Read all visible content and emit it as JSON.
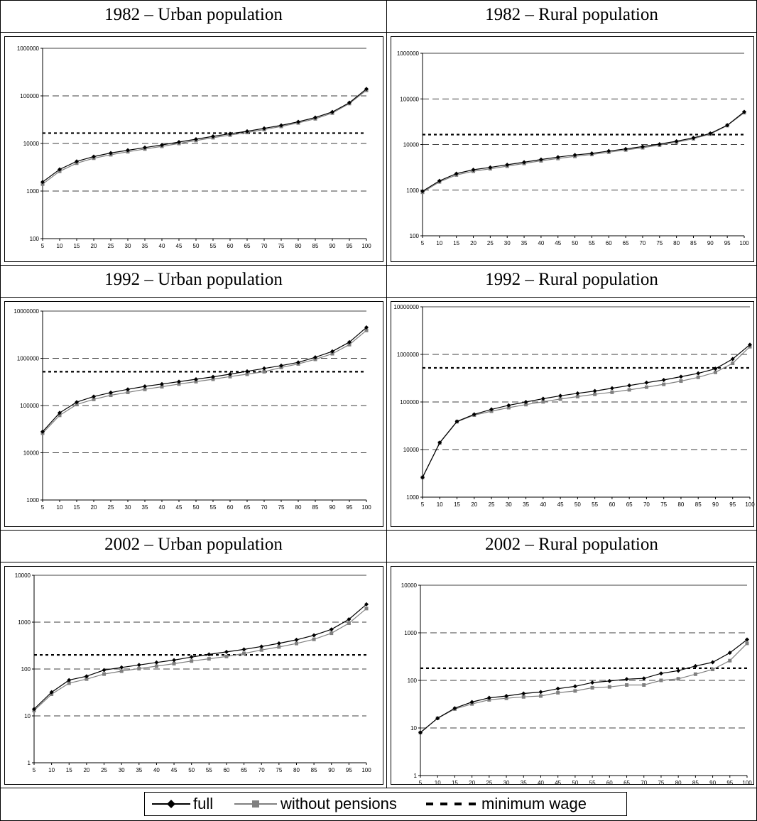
{
  "legend": {
    "full": "full",
    "without_pensions": "without pensions",
    "minimum_wage": "minimum wage"
  },
  "colors": {
    "full": "#000000",
    "without_pensions": "#808080",
    "minimum_wage": "#000000",
    "grid": "#000000"
  },
  "chart_data": [
    {
      "type": "line",
      "title": "1982 – Urban population",
      "scale": "log",
      "ylim": [
        100,
        1000000
      ],
      "yticks": [
        "100",
        "1000",
        "10000",
        "100000",
        "1000000"
      ],
      "x": [
        5,
        10,
        15,
        20,
        25,
        30,
        35,
        40,
        45,
        50,
        55,
        60,
        65,
        70,
        75,
        80,
        85,
        90,
        95,
        100
      ],
      "series": [
        {
          "name": "full",
          "values": [
            1550,
            2850,
            4200,
            5300,
            6300,
            7200,
            8200,
            9300,
            10700,
            12300,
            14100,
            16000,
            18000,
            20800,
            24000,
            28500,
            35000,
            46000,
            72000,
            140000
          ]
        },
        {
          "name": "without pensions",
          "values": [
            1400,
            2600,
            3850,
            4900,
            5800,
            6700,
            7650,
            8700,
            10000,
            11500,
            13200,
            15000,
            17000,
            19600,
            22800,
            27000,
            33000,
            43500,
            69000,
            131000
          ]
        }
      ],
      "minimum_wage": 16500
    },
    {
      "type": "line",
      "title": "1982 – Rural population",
      "scale": "log",
      "ylim": [
        100,
        1000000
      ],
      "yticks": [
        "100",
        "1000",
        "10000",
        "100000",
        "1000000"
      ],
      "x": [
        5,
        10,
        15,
        20,
        25,
        30,
        35,
        40,
        45,
        50,
        55,
        60,
        65,
        70,
        75,
        80,
        85,
        90,
        95,
        100
      ],
      "series": [
        {
          "name": "full",
          "values": [
            950,
            1600,
            2300,
            2800,
            3150,
            3600,
            4100,
            4700,
            5300,
            5900,
            6400,
            7200,
            8000,
            9000,
            10200,
            11800,
            14000,
            17500,
            26500,
            52000
          ]
        },
        {
          "name": "without pensions",
          "values": [
            900,
            1520,
            2150,
            2600,
            2950,
            3350,
            3850,
            4400,
            4950,
            5500,
            6050,
            6800,
            7600,
            8500,
            9700,
            11200,
            13400,
            17000,
            26000,
            50000
          ]
        }
      ],
      "minimum_wage": 16500
    },
    {
      "type": "line",
      "title": "1992 – Urban population",
      "scale": "log",
      "ylim": [
        1000,
        10000000
      ],
      "yticks": [
        "1000",
        "10000",
        "100000",
        "1000000",
        "10000000"
      ],
      "x": [
        5,
        10,
        15,
        20,
        25,
        30,
        35,
        40,
        45,
        50,
        55,
        60,
        65,
        70,
        75,
        80,
        85,
        90,
        95,
        100
      ],
      "series": [
        {
          "name": "full",
          "values": [
            28000,
            70000,
            118000,
            155000,
            188000,
            220000,
            255000,
            285000,
            320000,
            360000,
            405000,
            460000,
            530000,
            610000,
            700000,
            820000,
            1050000,
            1400000,
            2200000,
            4500000
          ]
        },
        {
          "name": "without pensions",
          "values": [
            26000,
            62000,
            105000,
            135000,
            165000,
            190000,
            220000,
            250000,
            285000,
            320000,
            360000,
            410000,
            460000,
            520000,
            640000,
            760000,
            950000,
            1250000,
            1950000,
            3900000
          ]
        }
      ],
      "minimum_wage": 520000
    },
    {
      "type": "line",
      "title": "1992 – Rural population",
      "scale": "log",
      "ylim": [
        1000,
        10000000
      ],
      "yticks": [
        "1000",
        "10000",
        "100000",
        "1000000",
        "10000000"
      ],
      "x": [
        5,
        10,
        15,
        20,
        25,
        30,
        35,
        40,
        45,
        50,
        55,
        60,
        65,
        70,
        75,
        80,
        85,
        90,
        95,
        100
      ],
      "series": [
        {
          "name": "full",
          "values": [
            2600,
            14000,
            39000,
            55000,
            70000,
            85000,
            100000,
            117000,
            135000,
            152000,
            170000,
            195000,
            222000,
            255000,
            290000,
            340000,
            400000,
            500000,
            800000,
            1600000
          ]
        },
        {
          "name": "without pensions",
          "values": [
            2600,
            13800,
            38500,
            53000,
            64000,
            76000,
            88000,
            101000,
            115000,
            130000,
            145000,
            160000,
            180000,
            205000,
            235000,
            275000,
            330000,
            420000,
            650000,
            1450000
          ]
        }
      ],
      "minimum_wage": 520000
    },
    {
      "type": "line",
      "title": "2002 – Urban population",
      "scale": "log",
      "ylim": [
        1,
        10000
      ],
      "yticks": [
        "1",
        "10",
        "100",
        "1000",
        "10000"
      ],
      "x": [
        5,
        10,
        15,
        20,
        25,
        30,
        35,
        40,
        45,
        50,
        55,
        60,
        65,
        70,
        75,
        80,
        85,
        90,
        95,
        100
      ],
      "series": [
        {
          "name": "full",
          "values": [
            14,
            32,
            58,
            70,
            95,
            108,
            122,
            138,
            155,
            180,
            205,
            232,
            262,
            302,
            352,
            420,
            525,
            700,
            1150,
            2400
          ]
        },
        {
          "name": "without pensions",
          "values": [
            13,
            29,
            50,
            61,
            78,
            90,
            102,
            115,
            130,
            148,
            165,
            185,
            215,
            255,
            295,
            350,
            430,
            580,
            950,
            1950
          ]
        }
      ],
      "minimum_wage": 200
    },
    {
      "type": "line",
      "title": "2002 – Rural population",
      "scale": "log",
      "ylim": [
        1,
        10000
      ],
      "yticks": [
        "1",
        "10",
        "100",
        "1000",
        "10000"
      ],
      "x": [
        5,
        10,
        15,
        20,
        25,
        30,
        35,
        40,
        45,
        50,
        55,
        60,
        65,
        70,
        75,
        80,
        85,
        90,
        95,
        100
      ],
      "series": [
        {
          "name": "full",
          "values": [
            8,
            16,
            26,
            35,
            43,
            47,
            53,
            57,
            67,
            75,
            90,
            97,
            106,
            110,
            140,
            160,
            200,
            240,
            380,
            720
          ]
        },
        {
          "name": "without pensions",
          "values": [
            8,
            16,
            25,
            32,
            39,
            42,
            45,
            47,
            55,
            60,
            70,
            73,
            80,
            80,
            100,
            108,
            135,
            170,
            260,
            600
          ]
        }
      ],
      "minimum_wage": 180
    }
  ]
}
